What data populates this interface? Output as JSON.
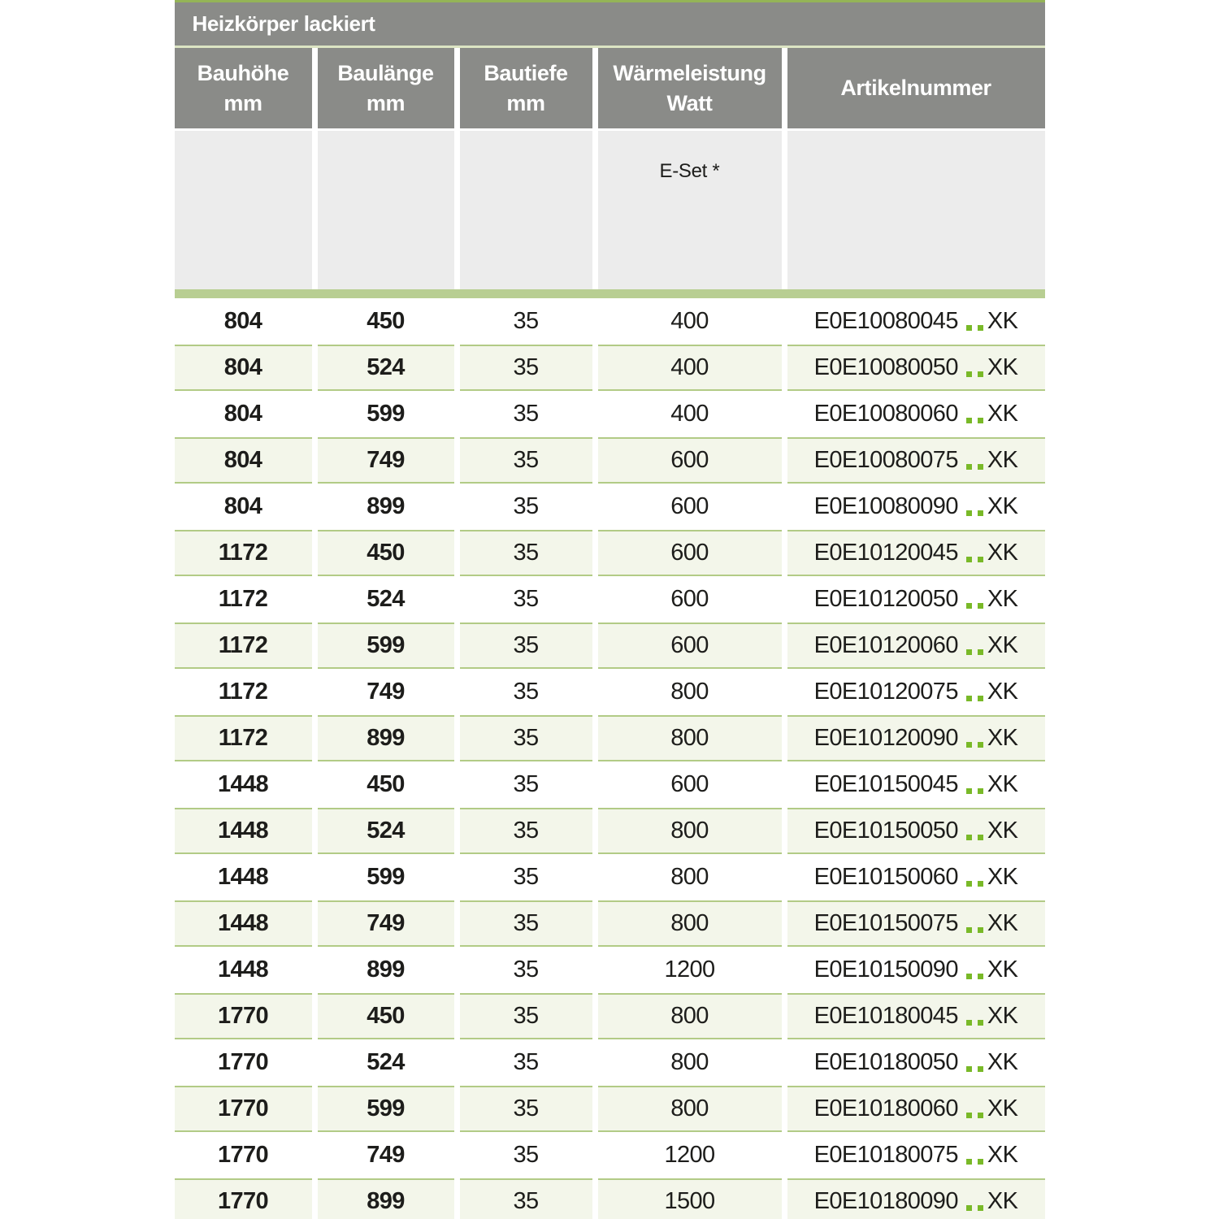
{
  "table": {
    "title": "Heizkörper lackiert",
    "columns": [
      {
        "line1": "Bauhöhe",
        "line2": "mm"
      },
      {
        "line1": "Baulänge",
        "line2": "mm"
      },
      {
        "line1": "Bautiefe",
        "line2": "mm"
      },
      {
        "line1": "Wärmeleistung",
        "line2": "Watt"
      },
      {
        "line1": "Artikelnummer",
        "line2": ""
      }
    ],
    "subheader": {
      "eset_label": "E-Set *"
    },
    "artikel_dots": "..",
    "rows": [
      {
        "bauhoehe": "804",
        "baulaenge": "450",
        "bautiefe": "35",
        "watt": "400",
        "artikel_prefix": "E0E10080045",
        "artikel_suffix": "XK"
      },
      {
        "bauhoehe": "804",
        "baulaenge": "524",
        "bautiefe": "35",
        "watt": "400",
        "artikel_prefix": "E0E10080050",
        "artikel_suffix": "XK"
      },
      {
        "bauhoehe": "804",
        "baulaenge": "599",
        "bautiefe": "35",
        "watt": "400",
        "artikel_prefix": "E0E10080060",
        "artikel_suffix": "XK"
      },
      {
        "bauhoehe": "804",
        "baulaenge": "749",
        "bautiefe": "35",
        "watt": "600",
        "artikel_prefix": "E0E10080075",
        "artikel_suffix": "XK"
      },
      {
        "bauhoehe": "804",
        "baulaenge": "899",
        "bautiefe": "35",
        "watt": "600",
        "artikel_prefix": "E0E10080090",
        "artikel_suffix": "XK"
      },
      {
        "bauhoehe": "1172",
        "baulaenge": "450",
        "bautiefe": "35",
        "watt": "600",
        "artikel_prefix": "E0E10120045",
        "artikel_suffix": "XK"
      },
      {
        "bauhoehe": "1172",
        "baulaenge": "524",
        "bautiefe": "35",
        "watt": "600",
        "artikel_prefix": "E0E10120050",
        "artikel_suffix": "XK"
      },
      {
        "bauhoehe": "1172",
        "baulaenge": "599",
        "bautiefe": "35",
        "watt": "600",
        "artikel_prefix": "E0E10120060",
        "artikel_suffix": "XK"
      },
      {
        "bauhoehe": "1172",
        "baulaenge": "749",
        "bautiefe": "35",
        "watt": "800",
        "artikel_prefix": "E0E10120075",
        "artikel_suffix": "XK"
      },
      {
        "bauhoehe": "1172",
        "baulaenge": "899",
        "bautiefe": "35",
        "watt": "800",
        "artikel_prefix": "E0E10120090",
        "artikel_suffix": "XK"
      },
      {
        "bauhoehe": "1448",
        "baulaenge": "450",
        "bautiefe": "35",
        "watt": "600",
        "artikel_prefix": "E0E10150045",
        "artikel_suffix": "XK"
      },
      {
        "bauhoehe": "1448",
        "baulaenge": "524",
        "bautiefe": "35",
        "watt": "800",
        "artikel_prefix": "E0E10150050",
        "artikel_suffix": "XK"
      },
      {
        "bauhoehe": "1448",
        "baulaenge": "599",
        "bautiefe": "35",
        "watt": "800",
        "artikel_prefix": "E0E10150060",
        "artikel_suffix": "XK"
      },
      {
        "bauhoehe": "1448",
        "baulaenge": "749",
        "bautiefe": "35",
        "watt": "800",
        "artikel_prefix": "E0E10150075",
        "artikel_suffix": "XK"
      },
      {
        "bauhoehe": "1448",
        "baulaenge": "899",
        "bautiefe": "35",
        "watt": "1200",
        "artikel_prefix": "E0E10150090",
        "artikel_suffix": "XK"
      },
      {
        "bauhoehe": "1770",
        "baulaenge": "450",
        "bautiefe": "35",
        "watt": "800",
        "artikel_prefix": "E0E10180045",
        "artikel_suffix": "XK"
      },
      {
        "bauhoehe": "1770",
        "baulaenge": "524",
        "bautiefe": "35",
        "watt": "800",
        "artikel_prefix": "E0E10180050",
        "artikel_suffix": "XK"
      },
      {
        "bauhoehe": "1770",
        "baulaenge": "599",
        "bautiefe": "35",
        "watt": "800",
        "artikel_prefix": "E0E10180060",
        "artikel_suffix": "XK"
      },
      {
        "bauhoehe": "1770",
        "baulaenge": "749",
        "bautiefe": "35",
        "watt": "1200",
        "artikel_prefix": "E0E10180075",
        "artikel_suffix": "XK"
      },
      {
        "bauhoehe": "1770",
        "baulaenge": "899",
        "bautiefe": "35",
        "watt": "1500",
        "artikel_prefix": "E0E10180090",
        "artikel_suffix": "XK"
      }
    ]
  },
  "colors": {
    "header_gray": "#8a8b88",
    "accent_green_dark": "#94b457",
    "pale_green_line": "#dce4c3",
    "section_gray": "#ececec",
    "band_green": "#b8ce92",
    "row_green_bg": "#f3f6ea",
    "row_border_green": "#b2cb86",
    "dot_green": "#79b928"
  }
}
